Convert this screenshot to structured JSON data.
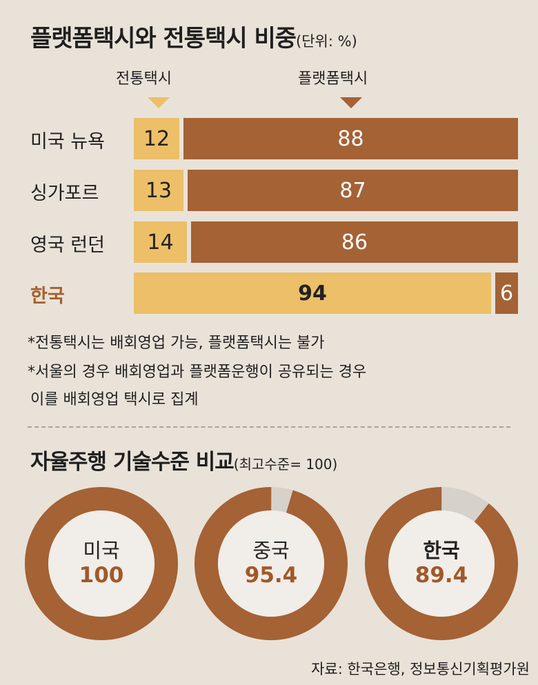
{
  "title": "플랫폼택시와 전통택시 비중",
  "unit": "(단위: %)",
  "legend": {
    "traditional": "전통택시",
    "platform": "플랫폼택시"
  },
  "colors": {
    "traditional": "#ecbf68",
    "platform": "#a46235",
    "accent": "#a5602d",
    "track": "#d7d1cb",
    "background": "#e9e2d8"
  },
  "notes": [
    "*전통택시는 배회영업 가능, 플랫폼택시는 불가",
    "*서울의 경우 배회영업과 플랫폼운행이 공유되는 경우",
    "이를 배회영업 택시로 집계"
  ],
  "title2": "자율주행 기술수준 비교",
  "unit2": "(최고수준= 100)",
  "source": "자료: 한국은행, 정보통신기획평가원",
  "chart_data": [
    {
      "type": "bar",
      "stacked": true,
      "orientation": "horizontal",
      "categories": [
        "미국 뉴욕",
        "싱가포르",
        "영국 런던",
        "한국"
      ],
      "series": [
        {
          "name": "전통택시",
          "values": [
            12,
            13,
            14,
            94
          ]
        },
        {
          "name": "플랫폼택시",
          "values": [
            88,
            87,
            86,
            6
          ]
        }
      ],
      "value_labels": [
        {
          "trad": "12",
          "plat": "88"
        },
        {
          "trad": "13",
          "plat": "87"
        },
        {
          "trad": "14",
          "plat": "86"
        },
        {
          "trad": "94",
          "plat": "6"
        }
      ],
      "xlim": [
        0,
        100
      ]
    },
    {
      "type": "pie",
      "style": "donut",
      "items": [
        {
          "name": "미국",
          "value": 100,
          "label": "100"
        },
        {
          "name": "중국",
          "value": 95.4,
          "label": "95.4"
        },
        {
          "name": "한국",
          "value": 89.4,
          "label": "89.4"
        }
      ],
      "max": 100
    }
  ]
}
